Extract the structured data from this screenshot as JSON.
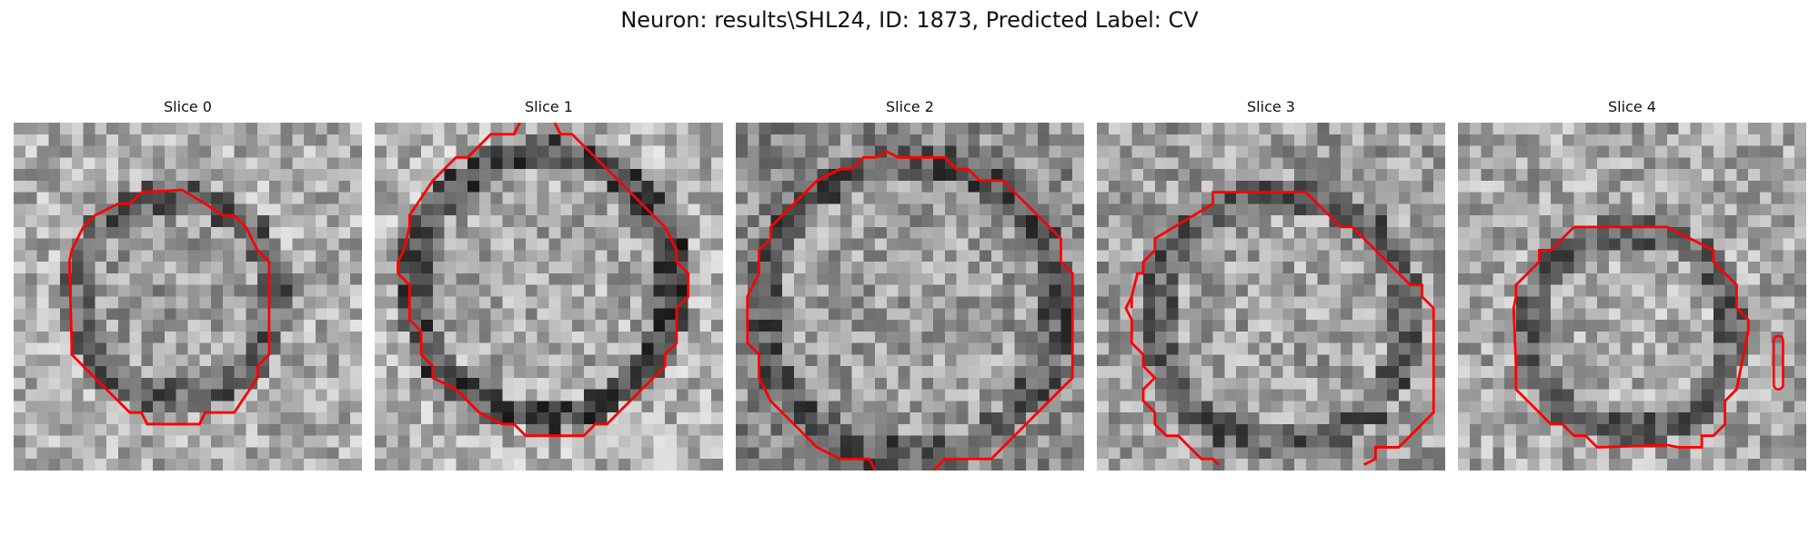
{
  "figure": {
    "title": "Neuron: results\\SHL24, ID: 1873, Predicted Label: CV"
  },
  "panels": [
    {
      "title": "Slice 0",
      "seed": 11,
      "contour_color": "#ff0000"
    },
    {
      "title": "Slice 1",
      "seed": 23,
      "contour_color": "#ff0000"
    },
    {
      "title": "Slice 2",
      "seed": 37,
      "contour_color": "#ff0000"
    },
    {
      "title": "Slice 3",
      "seed": 41,
      "contour_color": "#ff0000"
    },
    {
      "title": "Slice 4",
      "seed": 59,
      "contour_color": "#ff0000"
    }
  ]
}
